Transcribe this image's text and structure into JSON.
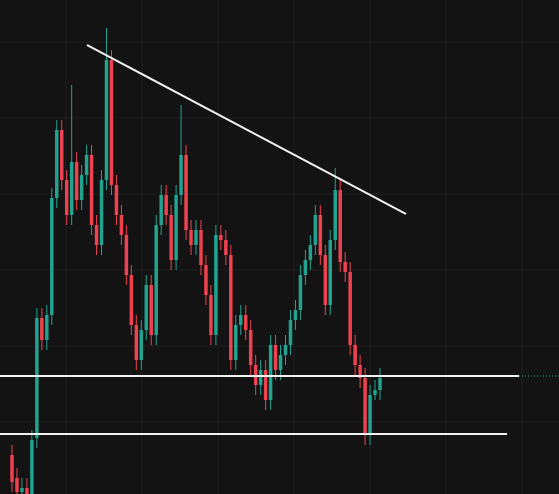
{
  "chart_data": {
    "type": "candlestick",
    "ylim": [
      0,
      494
    ],
    "up_color": "#22a390",
    "down_color": "#ef4250",
    "open": [
      39,
      16,
      2,
      6,
      0,
      56,
      176,
      154,
      179,
      296,
      364,
      314,
      279,
      332,
      294,
      319,
      339,
      269,
      249,
      314,
      434,
      309,
      279,
      259,
      219,
      169,
      134,
      164,
      209,
      159,
      269,
      299,
      279,
      234,
      299,
      339,
      264,
      249,
      264,
      229,
      199,
      159,
      259,
      254,
      239,
      134,
      169,
      179,
      164,
      129,
      109,
      124,
      94,
      149,
      124,
      139,
      149,
      174,
      184,
      219,
      234,
      249,
      279,
      239,
      189,
      254,
      304,
      232,
      222,
      149,
      129,
      116,
      59,
      99,
      104
    ],
    "high": [
      49,
      26,
      16,
      16,
      64,
      186,
      186,
      189,
      306,
      374,
      374,
      324,
      409,
      342,
      329,
      349,
      349,
      279,
      324,
      466,
      444,
      319,
      289,
      269,
      229,
      179,
      174,
      219,
      219,
      279,
      309,
      309,
      289,
      309,
      389,
      349,
      274,
      274,
      274,
      239,
      209,
      269,
      269,
      264,
      249,
      179,
      189,
      189,
      174,
      139,
      134,
      134,
      159,
      159,
      149,
      159,
      184,
      194,
      229,
      244,
      259,
      289,
      289,
      249,
      264,
      326,
      314,
      242,
      232,
      159,
      139,
      126,
      109,
      114,
      126
    ],
    "low": [
      2,
      0,
      0,
      0,
      0,
      46,
      144,
      144,
      169,
      286,
      304,
      269,
      269,
      284,
      284,
      309,
      259,
      239,
      239,
      304,
      299,
      269,
      249,
      209,
      159,
      124,
      124,
      154,
      149,
      149,
      259,
      269,
      224,
      224,
      289,
      254,
      239,
      239,
      219,
      189,
      149,
      149,
      244,
      229,
      124,
      124,
      159,
      154,
      119,
      99,
      99,
      84,
      84,
      114,
      114,
      129,
      139,
      164,
      174,
      209,
      224,
      239,
      229,
      179,
      179,
      244,
      222,
      212,
      139,
      119,
      106,
      49,
      49,
      94,
      94
    ],
    "close": [
      12,
      2,
      6,
      0,
      54,
      176,
      154,
      179,
      296,
      364,
      314,
      279,
      332,
      294,
      319,
      339,
      269,
      249,
      314,
      434,
      309,
      279,
      259,
      219,
      169,
      134,
      164,
      209,
      159,
      269,
      299,
      279,
      234,
      299,
      339,
      264,
      249,
      264,
      229,
      199,
      159,
      259,
      254,
      239,
      134,
      169,
      179,
      164,
      129,
      109,
      124,
      94,
      149,
      124,
      139,
      149,
      174,
      184,
      219,
      234,
      249,
      279,
      239,
      189,
      254,
      304,
      232,
      222,
      149,
      129,
      116,
      59,
      99,
      104,
      116
    ]
  }
}
